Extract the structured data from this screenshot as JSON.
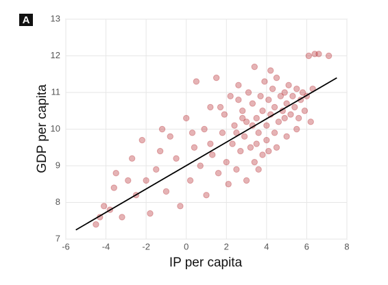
{
  "chart_data": {
    "type": "scatter",
    "panel_label": "A",
    "x_label": "IP per capita",
    "y_label": "GDP per capita",
    "xlim": [
      -6,
      8
    ],
    "ylim": [
      7,
      13
    ],
    "xticks": [
      -6,
      -4,
      -2,
      0,
      2,
      4,
      6,
      8
    ],
    "yticks": [
      7,
      8,
      9,
      10,
      11,
      12,
      13
    ],
    "grid": true,
    "color": "#b5262a",
    "alpha": 0.35,
    "x": [
      -4.5,
      -4.3,
      -4.1,
      -3.8,
      -3.6,
      -3.5,
      -3.2,
      -2.9,
      -2.7,
      -2.5,
      -2.2,
      -2.0,
      -1.8,
      -1.5,
      -1.3,
      -1.0,
      -0.8,
      -0.5,
      -0.3,
      0.0,
      0.2,
      0.4,
      0.5,
      0.7,
      0.9,
      1.0,
      1.2,
      1.3,
      1.5,
      1.6,
      1.8,
      1.9,
      2.0,
      2.1,
      2.2,
      2.3,
      2.4,
      2.5,
      2.6,
      2.7,
      2.8,
      2.9,
      3.0,
      3.0,
      3.1,
      3.2,
      3.3,
      3.4,
      3.4,
      3.5,
      3.6,
      3.7,
      3.8,
      3.8,
      3.9,
      4.0,
      4.0,
      4.1,
      4.2,
      4.3,
      4.4,
      4.4,
      4.5,
      4.6,
      4.7,
      4.8,
      4.9,
      5.0,
      5.0,
      5.1,
      5.2,
      5.3,
      5.4,
      5.5,
      5.6,
      5.7,
      5.8,
      5.9,
      6.0,
      6.2,
      6.3,
      6.1,
      6.4,
      6.6,
      7.1,
      4.5,
      3.6,
      2.5,
      1.2,
      0.3,
      -1.2,
      4.2,
      3.3,
      2.8,
      4.9,
      3.5,
      4.1,
      1.7,
      2.6,
      5.5
    ],
    "values": [
      7.4,
      7.6,
      7.9,
      7.8,
      8.4,
      8.8,
      7.6,
      8.6,
      9.2,
      8.2,
      9.7,
      8.6,
      7.7,
      8.9,
      9.4,
      8.3,
      9.8,
      9.2,
      7.9,
      10.3,
      8.6,
      9.5,
      11.3,
      9.0,
      10.0,
      8.2,
      10.6,
      9.3,
      11.4,
      8.8,
      9.9,
      10.4,
      9.1,
      8.5,
      10.9,
      9.6,
      10.1,
      8.9,
      11.2,
      9.4,
      10.5,
      9.8,
      8.6,
      10.2,
      11.0,
      9.5,
      10.7,
      9.1,
      11.7,
      10.3,
      9.9,
      10.9,
      9.3,
      10.5,
      11.3,
      10.1,
      9.7,
      10.8,
      10.4,
      11.1,
      9.9,
      10.6,
      11.4,
      10.2,
      10.9,
      10.5,
      11.0,
      9.8,
      10.7,
      11.2,
      10.4,
      10.9,
      10.6,
      11.1,
      10.3,
      10.8,
      11.0,
      10.5,
      10.9,
      10.2,
      11.1,
      12.0,
      12.05,
      12.05,
      12.0,
      9.5,
      8.9,
      9.9,
      9.6,
      9.9,
      10.0,
      11.6,
      10.1,
      10.3,
      10.3,
      9.6,
      9.4,
      10.6,
      10.8,
      10.0
    ],
    "fit_line": {
      "x": [
        -5.5,
        7.5
      ],
      "y": [
        7.25,
        11.4
      ],
      "color": "#000000"
    }
  }
}
